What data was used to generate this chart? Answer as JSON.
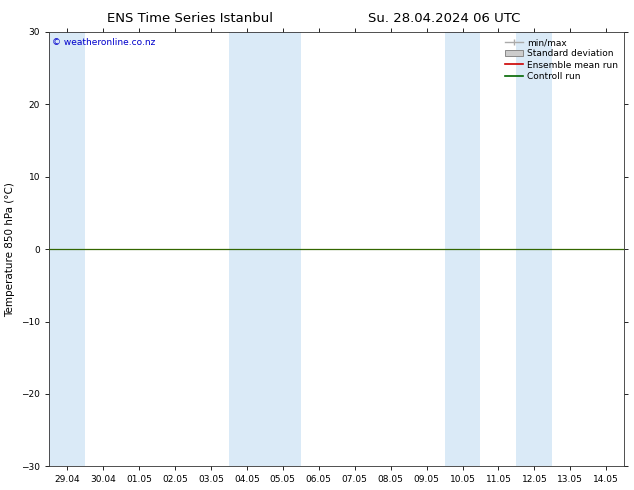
{
  "title_left": "ENS Time Series Istanbul",
  "title_right": "Su. 28.04.2024 06 UTC",
  "ylabel": "Temperature 850 hPa (°C)",
  "ylim": [
    -30,
    30
  ],
  "yticks": [
    -30,
    -20,
    -10,
    0,
    10,
    20,
    30
  ],
  "xlabels": [
    "29.04",
    "30.04",
    "01.05",
    "02.05",
    "03.05",
    "04.05",
    "05.05",
    "06.05",
    "07.05",
    "08.05",
    "09.05",
    "10.05",
    "11.05",
    "12.05",
    "13.05",
    "14.05"
  ],
  "watermark": "© weatheronline.co.nz",
  "bg_color": "#ffffff",
  "plot_bg_color": "#ffffff",
  "shade_color": "#daeaf7",
  "shaded_indices": [
    0,
    5,
    6,
    11,
    13
  ],
  "legend_items": [
    {
      "label": "min/max",
      "type": "errorbar",
      "color": "#aaaaaa"
    },
    {
      "label": "Standard deviation",
      "type": "box",
      "facecolor": "#cccccc",
      "edgecolor": "#888888"
    },
    {
      "label": "Ensemble mean run",
      "type": "line",
      "color": "#cc0000"
    },
    {
      "label": "Controll run",
      "type": "line",
      "color": "#006600"
    }
  ],
  "hline_y": 0,
  "hline_color": "#336600",
  "title_fontsize": 9.5,
  "tick_fontsize": 6.5,
  "ylabel_fontsize": 7.5,
  "watermark_fontsize": 6.5,
  "watermark_color": "#0000cc",
  "legend_fontsize": 6.5
}
